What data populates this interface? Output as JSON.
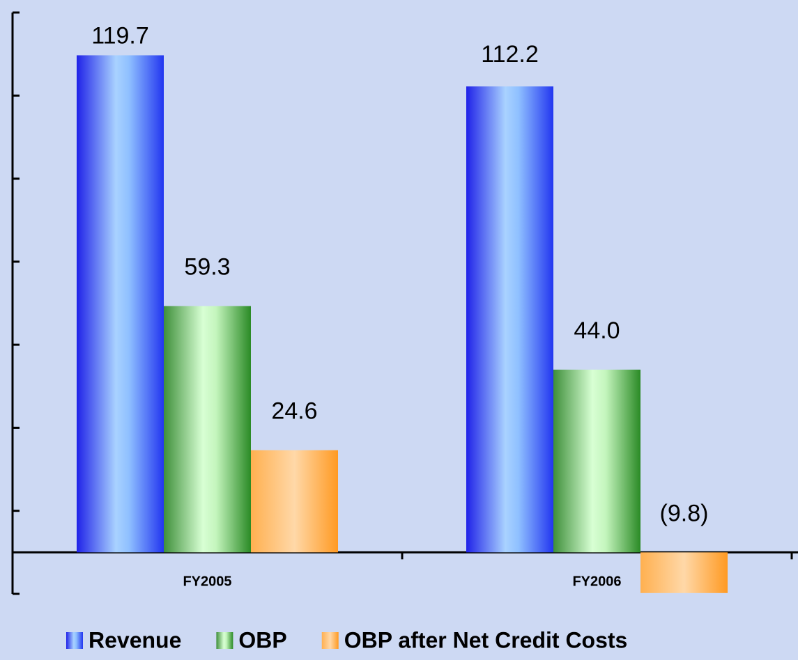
{
  "chart_data": {
    "type": "bar",
    "categories": [
      "FY2005",
      "FY2006"
    ],
    "series": [
      {
        "name": "Revenue",
        "color": "#2b3cff",
        "values": [
          119.7,
          112.2
        ],
        "value_labels": [
          "119.7",
          "112.2"
        ]
      },
      {
        "name": "OBP",
        "color": "#2f8a2a",
        "values": [
          59.3,
          44.0
        ],
        "value_labels": [
          "59.3",
          "44.0"
        ]
      },
      {
        "name": "OBP after Net Credit Costs",
        "color": "#ff9a22",
        "values": [
          24.6,
          -9.8
        ],
        "value_labels": [
          "24.6",
          "(9.8)"
        ]
      }
    ],
    "ylim": [
      -10,
      130
    ],
    "yticks": [
      -10,
      10,
      30,
      50,
      70,
      90,
      110,
      130
    ],
    "negative_label_color": "#ff0000"
  }
}
